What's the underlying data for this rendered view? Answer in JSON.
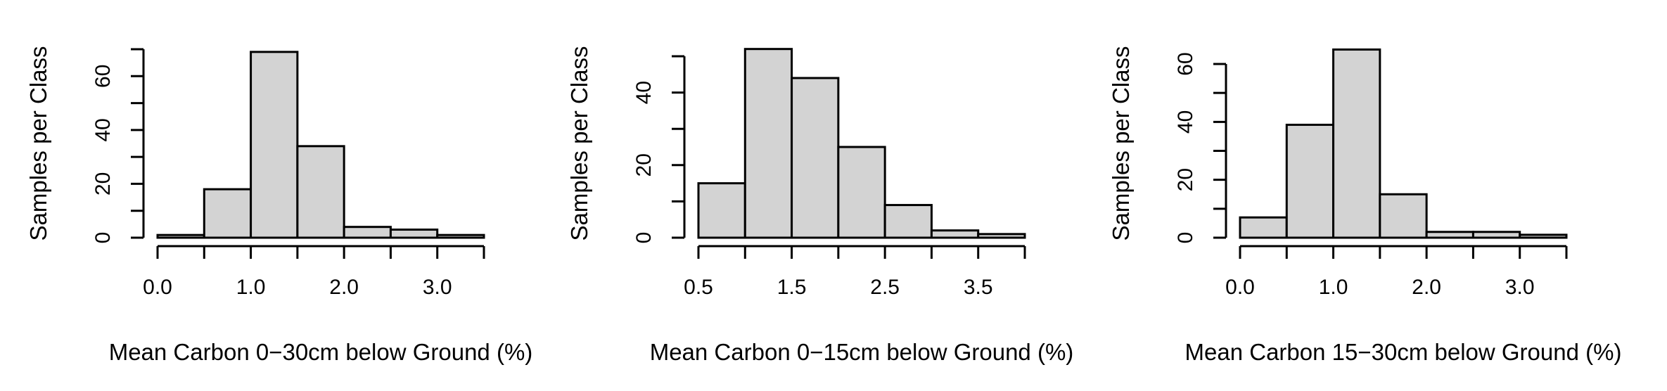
{
  "colors": {
    "bar_fill": "#d3d3d3",
    "bar_stroke": "#000000",
    "axis": "#000000",
    "background": "#ffffff"
  },
  "chart_data": [
    {
      "type": "bar",
      "chart_kind": "histogram",
      "xlabel": "Mean Carbon 0−30cm below Ground (%)",
      "ylabel": "Samples per Class",
      "bin_edges": [
        0.0,
        0.5,
        1.0,
        1.5,
        2.0,
        2.5,
        3.0,
        3.5
      ],
      "values": [
        1,
        18,
        69,
        34,
        4,
        3,
        1
      ],
      "xlim": [
        0.0,
        3.5
      ],
      "ylim": [
        0,
        70
      ],
      "x_ticks": [
        0.0,
        0.5,
        1.0,
        1.5,
        2.0,
        2.5,
        3.0,
        3.5
      ],
      "x_tick_labels": [
        {
          "value": 0.0,
          "label": "0.0"
        },
        {
          "value": 1.0,
          "label": "1.0"
        },
        {
          "value": 2.0,
          "label": "2.0"
        },
        {
          "value": 3.0,
          "label": "3.0"
        }
      ],
      "y_ticks": [
        0,
        10,
        20,
        30,
        40,
        50,
        60,
        70
      ],
      "y_tick_labels": [
        {
          "value": 0,
          "label": "0"
        },
        {
          "value": 20,
          "label": "20"
        },
        {
          "value": 40,
          "label": "40"
        },
        {
          "value": 60,
          "label": "60"
        }
      ],
      "grid": false
    },
    {
      "type": "bar",
      "chart_kind": "histogram",
      "xlabel": "Mean Carbon 0−15cm below Ground (%)",
      "ylabel": "Samples per Class",
      "bin_edges": [
        0.5,
        1.0,
        1.5,
        2.0,
        2.5,
        3.0,
        3.5,
        4.0
      ],
      "values": [
        15,
        52,
        44,
        25,
        9,
        2,
        1
      ],
      "xlim": [
        0.5,
        4.0
      ],
      "ylim": [
        0,
        50
      ],
      "x_ticks": [
        0.5,
        1.0,
        1.5,
        2.0,
        2.5,
        3.0,
        3.5,
        4.0
      ],
      "x_tick_labels": [
        {
          "value": 0.5,
          "label": "0.5"
        },
        {
          "value": 1.5,
          "label": "1.5"
        },
        {
          "value": 2.5,
          "label": "2.5"
        },
        {
          "value": 3.5,
          "label": "3.5"
        }
      ],
      "y_ticks": [
        0,
        10,
        20,
        30,
        40,
        50
      ],
      "y_tick_labels": [
        {
          "value": 0,
          "label": "0"
        },
        {
          "value": 20,
          "label": "20"
        },
        {
          "value": 40,
          "label": "40"
        }
      ],
      "grid": false
    },
    {
      "type": "bar",
      "chart_kind": "histogram",
      "xlabel": "Mean Carbon 15−30cm below Ground (%)",
      "ylabel": "Samples per Class",
      "bin_edges": [
        0.0,
        0.5,
        1.0,
        1.5,
        2.0,
        2.5,
        3.0,
        3.5
      ],
      "values": [
        7,
        39,
        65,
        15,
        2,
        2,
        1
      ],
      "xlim": [
        0.0,
        3.5
      ],
      "ylim": [
        0,
        60
      ],
      "x_ticks": [
        0.0,
        0.5,
        1.0,
        1.5,
        2.0,
        2.5,
        3.0,
        3.5
      ],
      "x_tick_labels": [
        {
          "value": 0.0,
          "label": "0.0"
        },
        {
          "value": 1.0,
          "label": "1.0"
        },
        {
          "value": 2.0,
          "label": "2.0"
        },
        {
          "value": 3.0,
          "label": "3.0"
        }
      ],
      "y_ticks": [
        0,
        10,
        20,
        30,
        40,
        50,
        60
      ],
      "y_tick_labels": [
        {
          "value": 0,
          "label": "0"
        },
        {
          "value": 20,
          "label": "20"
        },
        {
          "value": 40,
          "label": "40"
        },
        {
          "value": 60,
          "label": "60"
        }
      ],
      "grid": false
    }
  ]
}
